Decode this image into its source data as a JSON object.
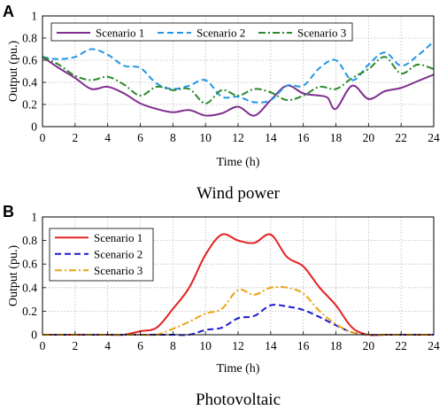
{
  "panels": [
    {
      "letter": "A",
      "caption": "Wind power",
      "chart_data": {
        "type": "line",
        "xlabel": "Time (h)",
        "ylabel": "Output (pu.)",
        "xlim": [
          0,
          24
        ],
        "ylim": [
          0,
          1
        ],
        "xticks": [
          "0",
          "2",
          "4",
          "6",
          "8",
          "10",
          "12",
          "14",
          "16",
          "18",
          "20",
          "22",
          "24"
        ],
        "yticks": [
          "0",
          "0.2",
          "0.4",
          "0.6",
          "0.8",
          "1"
        ],
        "grid": true,
        "legend_position": "top, single row",
        "series": [
          {
            "name": "Scenario 1",
            "color": "#7e2f8e",
            "dash": "solid",
            "x": [
              0,
              1,
              2,
              3,
              4,
              5,
              6,
              7,
              8,
              9,
              10,
              11,
              12,
              13,
              14,
              15,
              16,
              17,
              17.5,
              18,
              19,
              20,
              21,
              22,
              23,
              24
            ],
            "y": [
              0.63,
              0.53,
              0.44,
              0.34,
              0.36,
              0.3,
              0.21,
              0.16,
              0.13,
              0.15,
              0.1,
              0.12,
              0.18,
              0.1,
              0.24,
              0.37,
              0.3,
              0.28,
              0.26,
              0.16,
              0.37,
              0.25,
              0.32,
              0.35,
              0.41,
              0.47
            ]
          },
          {
            "name": "Scenario 2",
            "color": "#2196e8",
            "dash": "dashed",
            "x": [
              0,
              1,
              2,
              3,
              4,
              5,
              6,
              7,
              8,
              9,
              10,
              11,
              12,
              13,
              14,
              15,
              16,
              17,
              18,
              19,
              20,
              21,
              22,
              23,
              24
            ],
            "y": [
              0.63,
              0.61,
              0.63,
              0.7,
              0.65,
              0.55,
              0.53,
              0.39,
              0.34,
              0.37,
              0.42,
              0.27,
              0.27,
              0.22,
              0.24,
              0.37,
              0.37,
              0.53,
              0.6,
              0.42,
              0.56,
              0.67,
              0.55,
              0.64,
              0.77
            ]
          },
          {
            "name": "Scenario 3",
            "color": "#2a8a2a",
            "dash": "dashdot",
            "x": [
              0,
              1,
              2,
              3,
              4,
              5,
              6,
              7,
              8,
              9,
              10,
              11,
              12,
              13,
              14,
              15,
              16,
              17,
              18,
              19,
              20,
              21,
              22,
              23,
              24
            ],
            "y": [
              0.63,
              0.56,
              0.46,
              0.42,
              0.45,
              0.38,
              0.28,
              0.36,
              0.33,
              0.34,
              0.21,
              0.33,
              0.28,
              0.34,
              0.31,
              0.24,
              0.28,
              0.36,
              0.34,
              0.44,
              0.52,
              0.63,
              0.48,
              0.56,
              0.52
            ]
          }
        ]
      }
    },
    {
      "letter": "B",
      "caption": "Photovoltaic",
      "chart_data": {
        "type": "line",
        "xlabel": "Time (h)",
        "ylabel": "Output (pu.)",
        "xlim": [
          0,
          24
        ],
        "ylim": [
          0,
          1
        ],
        "xticks": [
          "0",
          "2",
          "4",
          "6",
          "8",
          "10",
          "12",
          "14",
          "16",
          "18",
          "20",
          "22",
          "24"
        ],
        "yticks": [
          "0",
          "0.2",
          "0.4",
          "0.6",
          "0.8",
          "1"
        ],
        "grid": true,
        "legend_position": "top-left",
        "series": [
          {
            "name": "Scenario 1",
            "color": "#e32222",
            "dash": "solid",
            "x": [
              0,
              1,
              2,
              3,
              4,
              5,
              6,
              7,
              8,
              9,
              10,
              11,
              12,
              13,
              14,
              15,
              16,
              17,
              18,
              19,
              20,
              21,
              22,
              23,
              24
            ],
            "y": [
              0,
              0,
              0,
              0,
              0,
              0,
              0.03,
              0.06,
              0.22,
              0.4,
              0.68,
              0.85,
              0.8,
              0.78,
              0.85,
              0.66,
              0.58,
              0.4,
              0.25,
              0.06,
              0,
              0,
              0,
              0,
              0
            ]
          },
          {
            "name": "Scenario 2",
            "color": "#1a1ad6",
            "dash": "dashed",
            "x": [
              0,
              1,
              2,
              3,
              4,
              5,
              6,
              7,
              8,
              9,
              10,
              11,
              12,
              13,
              14,
              15,
              16,
              17,
              18,
              19,
              20,
              21,
              22,
              23,
              24
            ],
            "y": [
              0,
              0,
              0,
              0,
              0,
              0,
              0,
              0,
              0,
              0,
              0.04,
              0.06,
              0.14,
              0.16,
              0.25,
              0.24,
              0.21,
              0.15,
              0.08,
              0.02,
              0,
              0,
              0,
              0,
              0
            ]
          },
          {
            "name": "Scenario 3",
            "color": "#eaa40f",
            "dash": "dashdot",
            "x": [
              0,
              1,
              2,
              3,
              4,
              5,
              6,
              7,
              8,
              9,
              10,
              11,
              12,
              13,
              14,
              15,
              16,
              17,
              18,
              19,
              20,
              21,
              22,
              23,
              24
            ],
            "y": [
              0,
              0,
              0,
              0,
              0,
              0,
              0,
              0,
              0.05,
              0.11,
              0.18,
              0.22,
              0.38,
              0.34,
              0.4,
              0.4,
              0.35,
              0.2,
              0.09,
              0.02,
              0,
              0,
              0,
              0,
              0
            ]
          }
        ]
      }
    }
  ]
}
